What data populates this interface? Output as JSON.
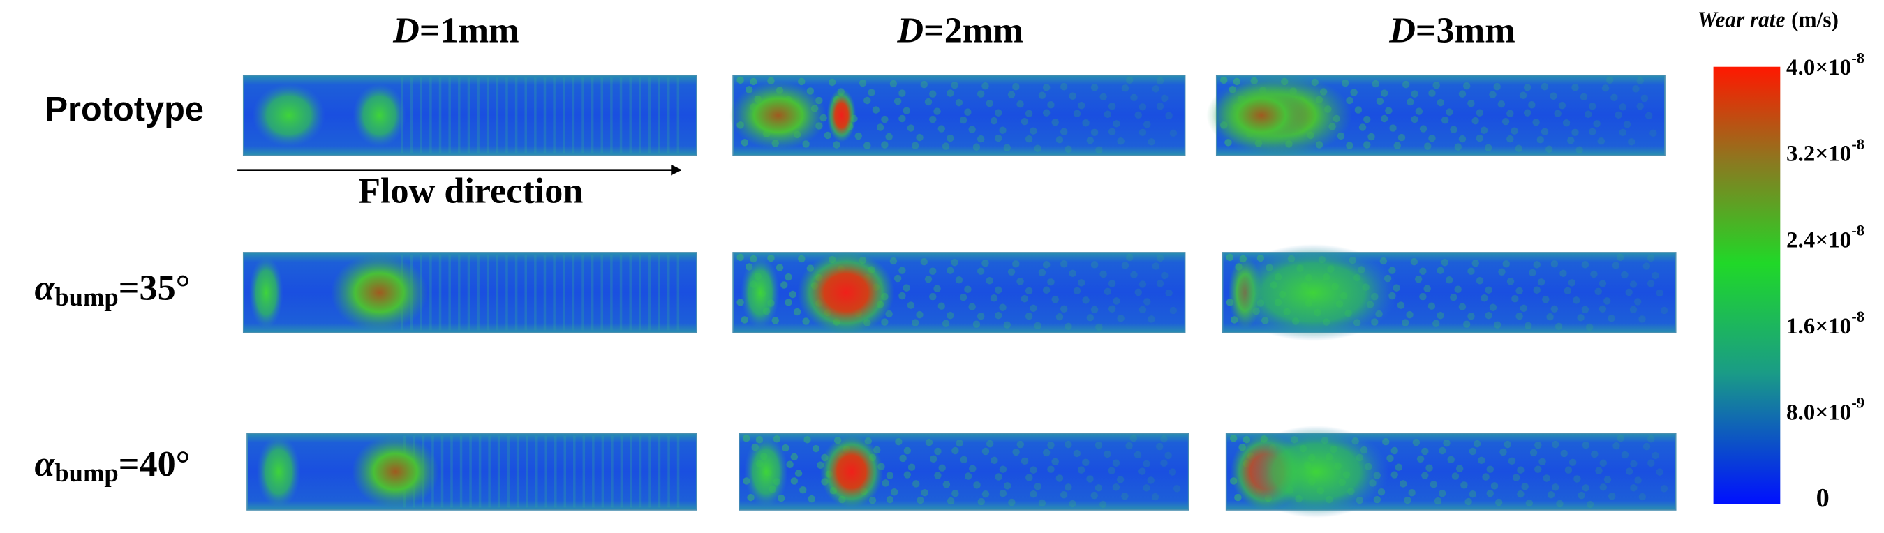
{
  "columns": [
    {
      "symbol": "D",
      "rest": "=1mm"
    },
    {
      "symbol": "D",
      "rest": "=2mm"
    },
    {
      "symbol": "D",
      "rest": "=3mm"
    }
  ],
  "rows": [
    {
      "label": "Prototype"
    },
    {
      "symbol": "α",
      "subscript": "bump",
      "rest": "=35°"
    },
    {
      "symbol": "α",
      "subscript": "bump",
      "rest": "=40°"
    }
  ],
  "flow_label": "Flow direction",
  "colorbar": {
    "title": {
      "italic": "Wear rate",
      "rest": "(m/s)"
    },
    "lim": [
      0,
      4e-08
    ],
    "ticks": [
      {
        "value": 4e-08,
        "base": "4.0×10",
        "exponent": "-8"
      },
      {
        "value": 3.2e-08,
        "base": "3.2×10",
        "exponent": "-8"
      },
      {
        "value": 2.4e-08,
        "base": "2.4×10",
        "exponent": "-8"
      },
      {
        "value": 1.6e-08,
        "base": "1.6×10",
        "exponent": "-8"
      },
      {
        "value": 8e-09,
        "base": "8.0×10",
        "exponent": "-9"
      },
      0
    ]
  }
}
